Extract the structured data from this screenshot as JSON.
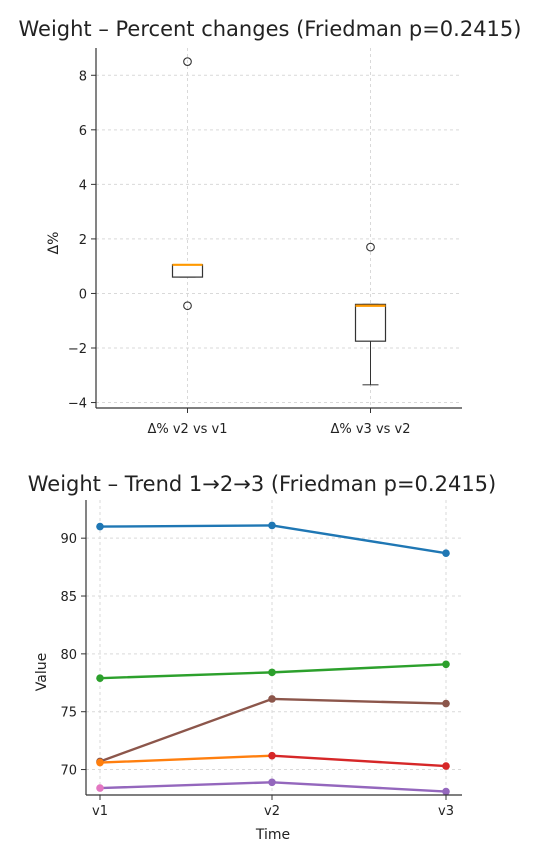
{
  "chart_data": [
    {
      "type": "box",
      "title": "Weight – Percent changes (Friedman p=0.2415)",
      "xlabel": "",
      "ylabel": "Δ%",
      "ylim": [
        -4.2,
        9.0
      ],
      "yticks": [
        -4,
        -2,
        0,
        2,
        4,
        6,
        8
      ],
      "ytick_labels": [
        "−4",
        "−2",
        "0",
        "2",
        "4",
        "6",
        "8"
      ],
      "grid": true,
      "categories": [
        "Δ% v2 vs v1",
        "Δ% v3 vs v2"
      ],
      "boxes": [
        {
          "category": "Δ% v2 vs v1",
          "whisker_low": 0.6,
          "q1": 0.6,
          "median": 1.05,
          "q3": 1.05,
          "whisker_high": 1.05,
          "outliers": [
            8.5,
            -0.45
          ]
        },
        {
          "category": "Δ% v3 vs v2",
          "whisker_low": -3.35,
          "q1": -1.75,
          "median": -0.45,
          "q3": -0.4,
          "whisker_high": -0.4,
          "outliers": [
            1.7
          ]
        }
      ],
      "median_color": "#ff9900"
    },
    {
      "type": "line",
      "title": "Weight – Trend 1→2→3 (Friedman p=0.2415)",
      "xlabel": "Time",
      "ylabel": "Value",
      "x": [
        "v1",
        "v2",
        "v3"
      ],
      "ylim": [
        67.8,
        93.3
      ],
      "yticks": [
        70,
        75,
        80,
        85,
        90
      ],
      "grid": true,
      "series": [
        {
          "values": [
            91.0,
            91.1,
            88.7
          ],
          "color": "#1f77b4"
        },
        {
          "values": [
            77.9,
            78.4,
            79.1
          ],
          "color": "#2ca02c"
        },
        {
          "values": [
            70.7,
            76.1,
            75.7
          ],
          "color": "#8c564b"
        },
        {
          "values": [
            70.6,
            71.2,
            70.3
          ],
          "segment_colors": [
            "#ff7f0e",
            "#d62728"
          ],
          "point_colors": [
            "#ff7f0e",
            "#d62728",
            "#d62728"
          ]
        },
        {
          "values": [
            68.4,
            68.9,
            68.1
          ],
          "segment_colors": [
            "#9467bd",
            "#9467bd"
          ],
          "point_colors": [
            "#e377c2",
            "#9467bd",
            "#9467bd"
          ]
        }
      ]
    }
  ]
}
